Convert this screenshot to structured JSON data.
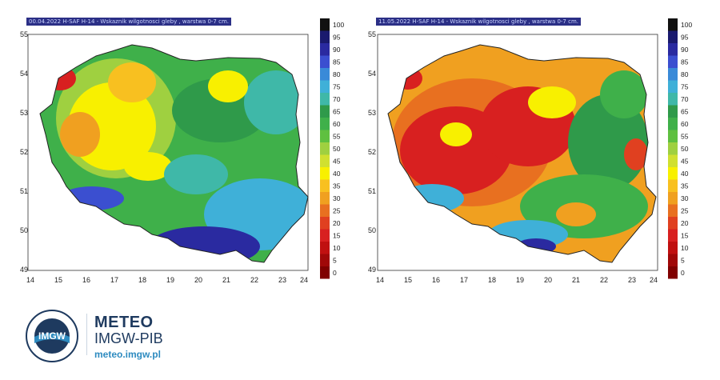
{
  "maps": [
    {
      "title": "00.04.2022 H-SAF H-14 - Wskaznik wilgotnosci gleby , warstwa 0-7 cm.",
      "x_ticks": [
        "14",
        "15",
        "16",
        "17",
        "18",
        "19",
        "20",
        "21",
        "22",
        "23",
        "24"
      ],
      "y_ticks": [
        "55",
        "54",
        "53",
        "52",
        "51",
        "50",
        "49"
      ],
      "colorbar": [
        "100",
        "95",
        "90",
        "85",
        "80",
        "75",
        "70",
        "65",
        "60",
        "55",
        "50",
        "45",
        "40",
        "35",
        "30",
        "25",
        "20",
        "15",
        "10",
        "5",
        "0"
      ]
    },
    {
      "title": "11.05.2022 H-SAF H-14 - Wskaznik wilgotnosci gleby , warstwa 0-7 cm.",
      "x_ticks": [
        "14",
        "15",
        "16",
        "17",
        "18",
        "19",
        "20",
        "21",
        "22",
        "23",
        "24"
      ],
      "y_ticks": [
        "55",
        "54",
        "53",
        "52",
        "51",
        "50",
        "49"
      ],
      "colorbar": [
        "100",
        "95",
        "90",
        "85",
        "80",
        "75",
        "70",
        "65",
        "60",
        "55",
        "50",
        "45",
        "40",
        "35",
        "30",
        "25",
        "20",
        "15",
        "10",
        "5",
        "0"
      ]
    }
  ],
  "colors": [
    "#111111",
    "#1a1a6e",
    "#2a2aa0",
    "#3b4fd0",
    "#3a8ad8",
    "#3fb0d8",
    "#3fb8a8",
    "#2f9a4a",
    "#3fb04a",
    "#5fc040",
    "#9fd040",
    "#d0e030",
    "#f8f000",
    "#f8c020",
    "#f0a020",
    "#e87020",
    "#e04020",
    "#d82020",
    "#c01010",
    "#a00808",
    "#800000"
  ],
  "footer": {
    "brand_line1": "METEO",
    "brand_line2": "IMGW-PIB",
    "brand_url": "meteo.imgw.pl",
    "logo_text": "IMGW"
  }
}
